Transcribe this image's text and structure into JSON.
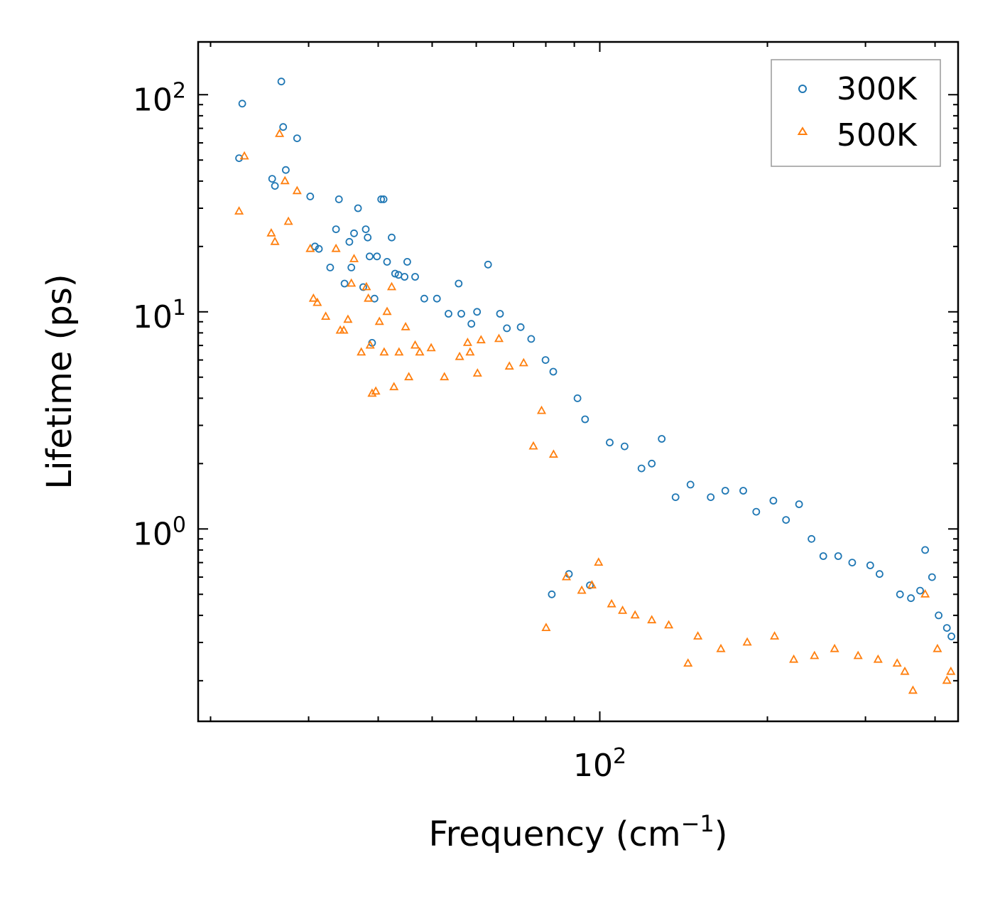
{
  "chart_data": {
    "type": "scatter",
    "xscale": "log",
    "yscale": "log",
    "xlabel": "Frequency (cm",
    "xlabel_sup": "−1",
    "xlabel_close": ")",
    "ylabel": "Lifetime (ps)",
    "xlim": [
      19,
      440
    ],
    "ylim": [
      0.13,
      175
    ],
    "x_tick_labels": [
      {
        "value": 100,
        "base": "10",
        "exp": "2"
      }
    ],
    "y_tick_labels": [
      {
        "value": 1,
        "base": "10",
        "exp": "0"
      },
      {
        "value": 10,
        "base": "10",
        "exp": "1"
      },
      {
        "value": 100,
        "base": "10",
        "exp": "2"
      }
    ],
    "legend_position": "top-right",
    "series": [
      {
        "name": "300K",
        "marker": "circle",
        "color": "#1f77b4",
        "points": [
          [
            22.5,
            51
          ],
          [
            22.8,
            91
          ],
          [
            25.8,
            41
          ],
          [
            26.1,
            38
          ],
          [
            26.8,
            115
          ],
          [
            27.0,
            71
          ],
          [
            27.3,
            45
          ],
          [
            28.6,
            63
          ],
          [
            30.2,
            34
          ],
          [
            30.8,
            20
          ],
          [
            31.3,
            19.5
          ],
          [
            32.8,
            16
          ],
          [
            33.6,
            24
          ],
          [
            34.0,
            33
          ],
          [
            34.8,
            13.5
          ],
          [
            35.5,
            21
          ],
          [
            35.8,
            16
          ],
          [
            36.2,
            23
          ],
          [
            36.8,
            30
          ],
          [
            37.6,
            13
          ],
          [
            38.0,
            24
          ],
          [
            38.3,
            22
          ],
          [
            38.6,
            18
          ],
          [
            39.0,
            7.2
          ],
          [
            39.4,
            11.5
          ],
          [
            39.8,
            18
          ],
          [
            40.5,
            33
          ],
          [
            40.9,
            33
          ],
          [
            41.5,
            17
          ],
          [
            42.3,
            22
          ],
          [
            42.9,
            15
          ],
          [
            43.5,
            14.8
          ],
          [
            44.6,
            14.5
          ],
          [
            45.1,
            17
          ],
          [
            46.6,
            14.5
          ],
          [
            48.4,
            11.5
          ],
          [
            51.0,
            11.5
          ],
          [
            53.5,
            9.8
          ],
          [
            55.8,
            13.5
          ],
          [
            56.4,
            9.8
          ],
          [
            58.8,
            8.8
          ],
          [
            60.2,
            10
          ],
          [
            63.0,
            16.5
          ],
          [
            66.2,
            9.8
          ],
          [
            68.1,
            8.4
          ],
          [
            72.1,
            8.5
          ],
          [
            75.3,
            7.5
          ],
          [
            79.9,
            6.0
          ],
          [
            82.5,
            5.3
          ],
          [
            91.2,
            4.0
          ],
          [
            94.1,
            3.2
          ],
          [
            104.2,
            2.5
          ],
          [
            110.8,
            2.4
          ],
          [
            118.8,
            1.9
          ],
          [
            124.0,
            2.0
          ],
          [
            129.2,
            2.6
          ],
          [
            136.8,
            1.4
          ],
          [
            145.5,
            1.6
          ],
          [
            158.2,
            1.4
          ],
          [
            168.0,
            1.5
          ],
          [
            181.0,
            1.5
          ],
          [
            191.0,
            1.2
          ],
          [
            205.0,
            1.35
          ],
          [
            216.0,
            1.1
          ],
          [
            228.0,
            1.3
          ],
          [
            240.0,
            0.9
          ],
          [
            252.0,
            0.75
          ],
          [
            268.0,
            0.75
          ],
          [
            284.0,
            0.7
          ],
          [
            306.0,
            0.68
          ],
          [
            318.0,
            0.62
          ],
          [
            346.0,
            0.5
          ],
          [
            362.0,
            0.48
          ],
          [
            376.0,
            0.52
          ],
          [
            384.0,
            0.8
          ],
          [
            395.0,
            0.6
          ],
          [
            406.0,
            0.4
          ],
          [
            420.0,
            0.35
          ],
          [
            428.0,
            0.32
          ],
          [
            82.0,
            0.5
          ],
          [
            88.0,
            0.62
          ],
          [
            96.0,
            0.55
          ]
        ]
      },
      {
        "name": "500K",
        "marker": "triangle",
        "color": "#ff7f0e",
        "points": [
          [
            22.5,
            29
          ],
          [
            23.0,
            52
          ],
          [
            25.7,
            23
          ],
          [
            26.1,
            21
          ],
          [
            26.6,
            66
          ],
          [
            27.2,
            40
          ],
          [
            27.6,
            26
          ],
          [
            28.6,
            36
          ],
          [
            30.2,
            19.5
          ],
          [
            30.6,
            11.5
          ],
          [
            31.1,
            11
          ],
          [
            32.2,
            9.5
          ],
          [
            33.6,
            19.5
          ],
          [
            34.2,
            8.2
          ],
          [
            34.7,
            8.2
          ],
          [
            35.3,
            9.2
          ],
          [
            35.8,
            13.5
          ],
          [
            36.2,
            17.5
          ],
          [
            37.3,
            6.5
          ],
          [
            38.1,
            13
          ],
          [
            38.4,
            11.5
          ],
          [
            38.7,
            7.0
          ],
          [
            39.0,
            4.2
          ],
          [
            39.6,
            4.3
          ],
          [
            40.2,
            9
          ],
          [
            41.0,
            6.5
          ],
          [
            41.5,
            10
          ],
          [
            42.3,
            13
          ],
          [
            42.7,
            4.5
          ],
          [
            43.6,
            6.5
          ],
          [
            44.8,
            8.5
          ],
          [
            45.4,
            5
          ],
          [
            46.6,
            7.0
          ],
          [
            47.5,
            6.5
          ],
          [
            49.8,
            6.8
          ],
          [
            52.6,
            5.0
          ],
          [
            56.0,
            6.2
          ],
          [
            57.9,
            7.2
          ],
          [
            58.5,
            6.5
          ],
          [
            60.3,
            5.2
          ],
          [
            61.2,
            7.4
          ],
          [
            65.9,
            7.5
          ],
          [
            68.8,
            5.6
          ],
          [
            73.0,
            5.8
          ],
          [
            76.0,
            2.4
          ],
          [
            78.6,
            3.5
          ],
          [
            80.1,
            0.35
          ],
          [
            82.6,
            2.2
          ],
          [
            87.1,
            0.6
          ],
          [
            92.8,
            0.52
          ],
          [
            96.8,
            0.55
          ],
          [
            99.5,
            0.7
          ],
          [
            105.0,
            0.45
          ],
          [
            109.9,
            0.42
          ],
          [
            115.7,
            0.4
          ],
          [
            124.0,
            0.38
          ],
          [
            133.0,
            0.36
          ],
          [
            144.0,
            0.24
          ],
          [
            150.0,
            0.32
          ],
          [
            165.0,
            0.28
          ],
          [
            184.0,
            0.3
          ],
          [
            206.0,
            0.32
          ],
          [
            223.0,
            0.25
          ],
          [
            243.0,
            0.26
          ],
          [
            264.0,
            0.28
          ],
          [
            291.0,
            0.26
          ],
          [
            316.0,
            0.25
          ],
          [
            342.0,
            0.24
          ],
          [
            353.0,
            0.22
          ],
          [
            365.0,
            0.18
          ],
          [
            384.0,
            0.5
          ],
          [
            404.0,
            0.28
          ],
          [
            420.0,
            0.2
          ],
          [
            427.0,
            0.22
          ]
        ]
      }
    ]
  }
}
